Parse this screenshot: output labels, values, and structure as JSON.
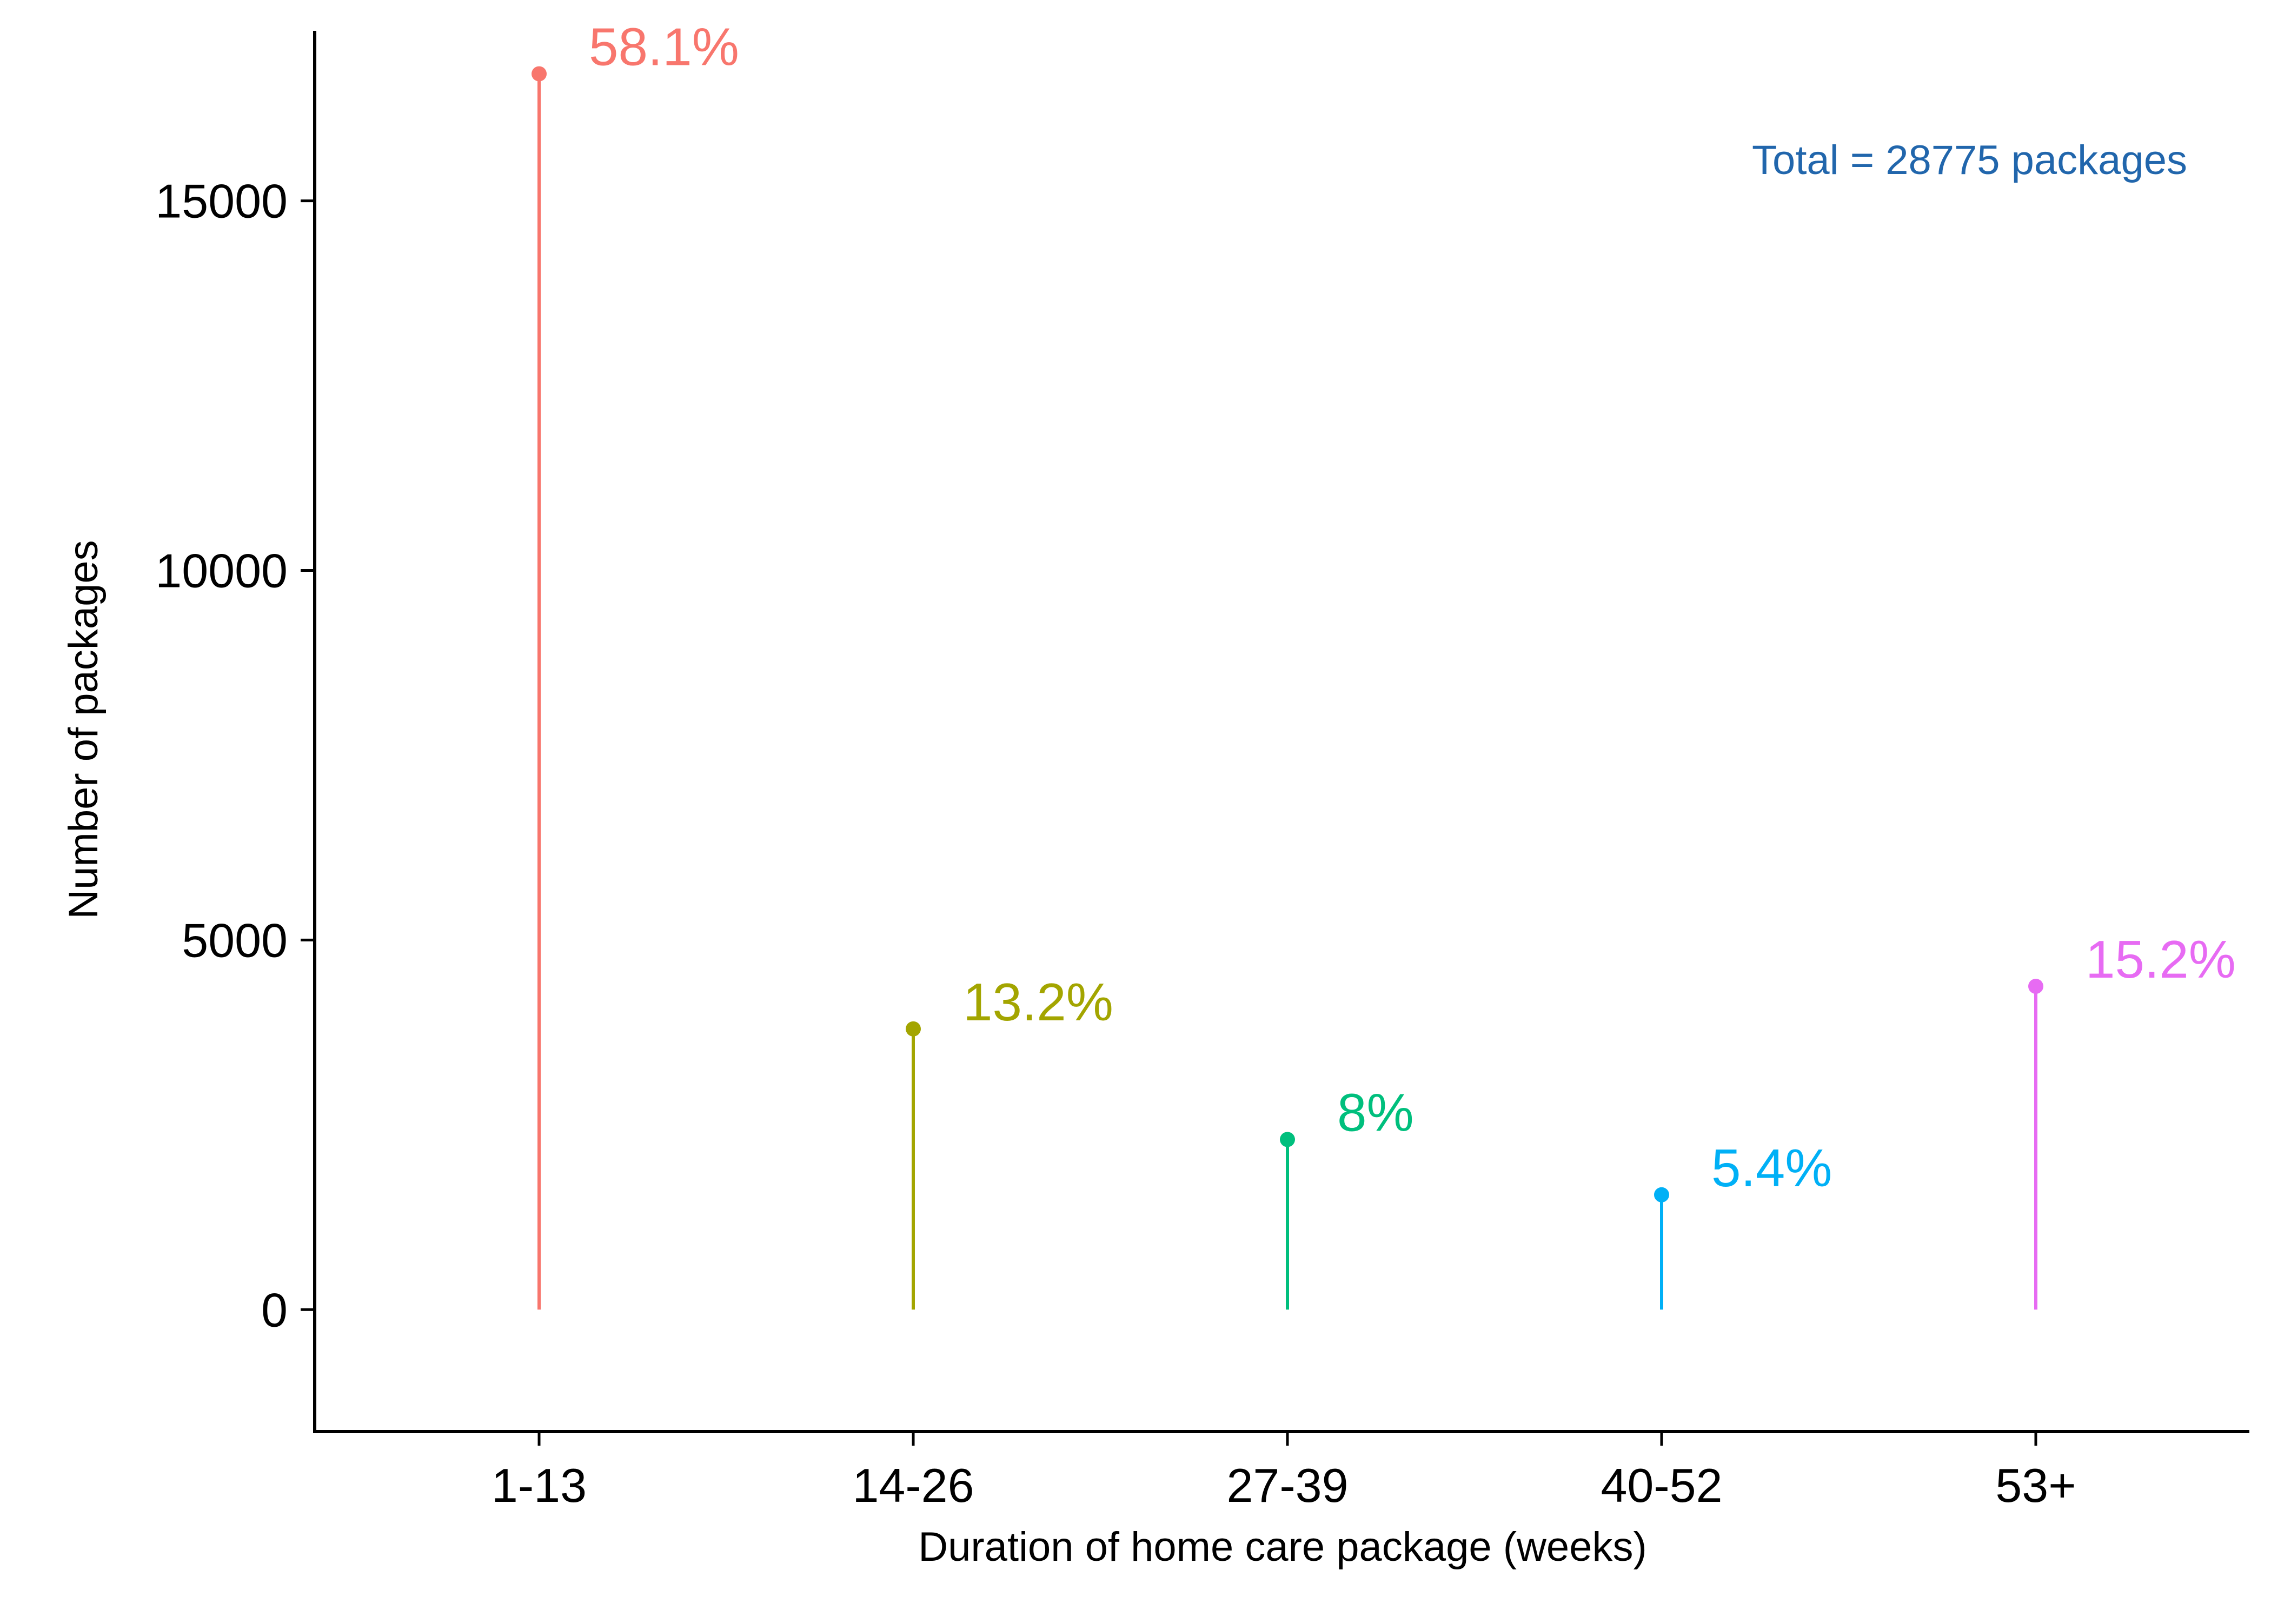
{
  "chart_data": {
    "type": "lollipop",
    "xlabel": "Duration of home care package (weeks)",
    "ylabel": "Number of packages",
    "ylim": [
      -1650,
      17300
    ],
    "yticks": [
      0,
      5000,
      10000,
      15000
    ],
    "grid": false,
    "legend": "none",
    "annotation": "Total = 28775 packages",
    "annotation_color": "#2166AC",
    "categories": [
      "1-13",
      "14-26",
      "27-39",
      "40-52",
      "53+"
    ],
    "values": [
      16718,
      3798,
      2302,
      1554,
      4374
    ],
    "labels": [
      "58.1%",
      "13.2%",
      "8%",
      "5.4%",
      "15.2%"
    ],
    "colors": [
      "#F8766D",
      "#A3A500",
      "#00BF7D",
      "#00B0F6",
      "#E76BF3"
    ]
  }
}
